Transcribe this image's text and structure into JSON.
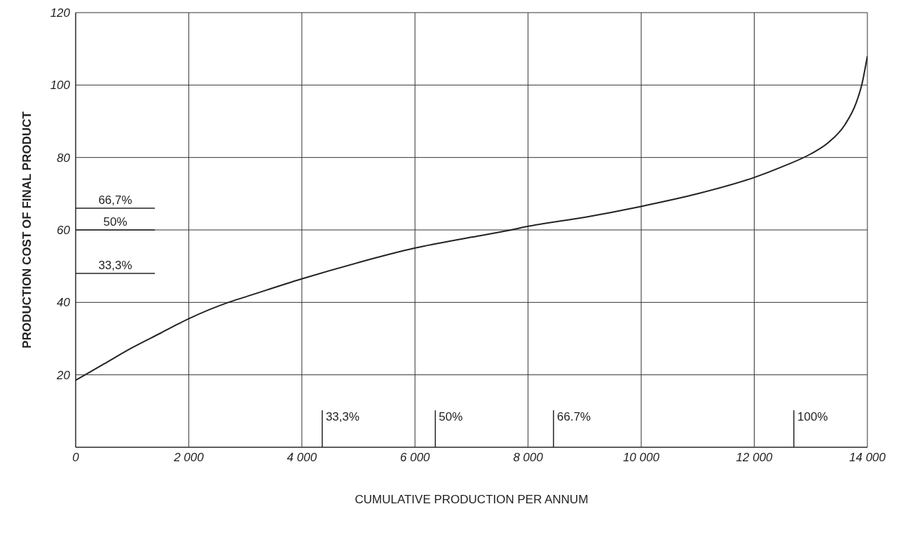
{
  "chart_data": {
    "type": "line",
    "xlabel": "CUMULATIVE PRODUCTION PER ANNUM",
    "ylabel": "PRODUCTION COST OF FINAL PRODUCT",
    "x": [
      0,
      500,
      1000,
      1500,
      2000,
      2700,
      3000,
      4000,
      5000,
      6000,
      7000,
      7700,
      8000,
      9000,
      10000,
      11000,
      12000,
      12500,
      13000,
      13300,
      13600,
      13800,
      13900,
      14000
    ],
    "series": [
      {
        "color": "#222222",
        "values": [
          18.5,
          23,
          27.5,
          31.5,
          35.5,
          40,
          41.5,
          46.5,
          51,
          55,
          58,
          60,
          61,
          63.5,
          66.5,
          70,
          74.5,
          77.5,
          81,
          84,
          89,
          95,
          100,
          108
        ]
      }
    ],
    "xlim": [
      0,
      14000
    ],
    "xticks": [
      0,
      {
        "value": 2000,
        "label": "2 000"
      },
      {
        "value": 4000,
        "label": "4 000"
      },
      {
        "value": 6000,
        "label": "6 000"
      },
      {
        "value": 8000,
        "label": "8 000"
      },
      {
        "value": 10000,
        "label": "10 000"
      },
      {
        "value": 12000,
        "label": "12 000"
      },
      {
        "value": 14000,
        "label": "14 000"
      }
    ],
    "ylim": [
      0,
      120
    ],
    "yticks": [
      {
        "value": 0,
        "label": null
      },
      20,
      40,
      60,
      80,
      100,
      120
    ],
    "grid": true,
    "marker": "none",
    "line_style": "solid",
    "ref_lines": [
      {
        "axis": "y",
        "value": 66
      },
      {
        "axis": "y",
        "value": 60
      },
      {
        "axis": "y",
        "value": 48
      },
      {
        "axis": "x",
        "value": 4360
      },
      {
        "axis": "x",
        "value": 6360
      },
      {
        "axis": "x",
        "value": 8450
      },
      {
        "axis": "x",
        "value": 12700
      }
    ],
    "annotations": [
      {
        "text": "66,7%",
        "x": 700,
        "y": 66
      },
      {
        "text": "50%",
        "x": 700,
        "y": 60
      },
      {
        "text": "33,3%",
        "x": 700,
        "y": 48
      },
      {
        "text": "33,3%",
        "x": 4360,
        "y": 10
      },
      {
        "text": "50%",
        "x": 6360,
        "y": 10
      },
      {
        "text": "66.7%",
        "x": 8450,
        "y": 10
      },
      {
        "text": "100%",
        "x": 12700,
        "y": 10
      }
    ]
  }
}
